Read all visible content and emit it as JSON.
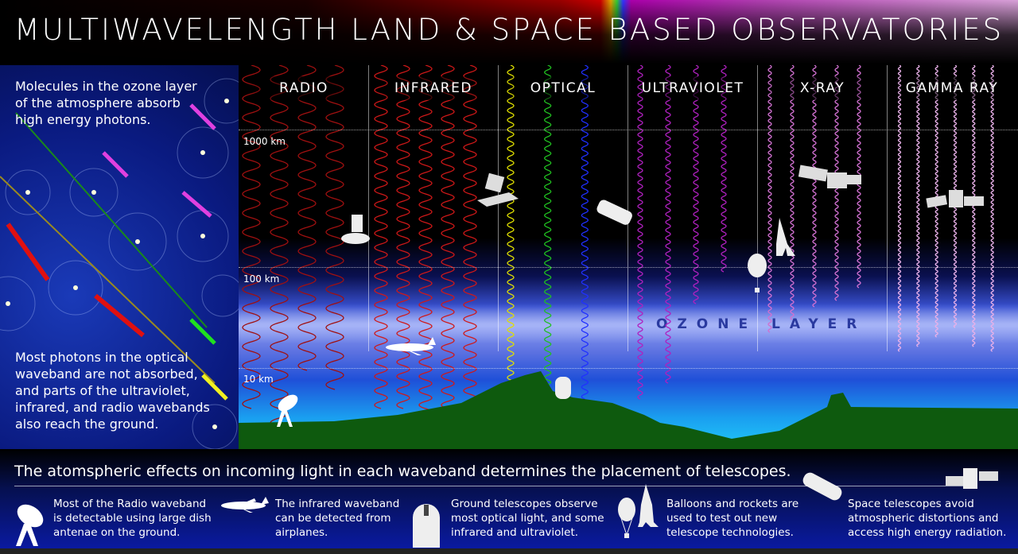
{
  "title": "MULTIWAVELENGTH LAND & SPACE BASED OBSERVATORIES",
  "left_panel": {
    "top_text": "Molecules in the ozone layer of the atmosphere absorb high energy photons.",
    "bottom_text": "Most photons in the optical waveband are not absorbed, and parts of the ultraviolet, infrared, and radio wavebands also reach the ground."
  },
  "columns": [
    {
      "label": "RADIO",
      "wave_colors": [
        "#a01010"
      ]
    },
    {
      "label": "INFRARED",
      "wave_colors": [
        "#d01818"
      ]
    },
    {
      "label": "OPTICAL",
      "wave_colors": [
        "#e0e000",
        "#20c020",
        "#2030ff"
      ]
    },
    {
      "label": "ULTRAVIOLET",
      "wave_colors": [
        "#b020c0"
      ]
    },
    {
      "label": "X-RAY",
      "wave_colors": [
        "#d070d0"
      ]
    },
    {
      "label": "GAMMA RAY",
      "wave_colors": [
        "#e8b0e8"
      ]
    }
  ],
  "altitudes": [
    "1000 km",
    "100 km",
    "10 km"
  ],
  "ozone_label": "OZONE LAYER",
  "colors": {
    "ground": "#0e5a0e",
    "sky_low": "#20c8f8",
    "bottom_panel": "#0a1aa0"
  },
  "bottom": {
    "title": "The atomspheric effects on incoming light in each waveband determines the placement of telescopes.",
    "items": [
      {
        "icon": "radio-dish-icon",
        "text": "Most of the Radio waveband is detectable using large dish antenae on the ground."
      },
      {
        "icon": "airplane-icon",
        "text": "The infrared waveband can be detected from airplanes."
      },
      {
        "icon": "observatory-dome-icon",
        "text": "Ground telescopes observe most optical light, and some infrared and ultraviolet."
      },
      {
        "icon": "balloon-rocket-icon",
        "text": "Balloons and rockets are used to test out new telescope technologies."
      },
      {
        "icon": "space-telescope-icon",
        "text": "Space telescopes avoid atmospheric distortions and access high energy radiation."
      }
    ]
  }
}
